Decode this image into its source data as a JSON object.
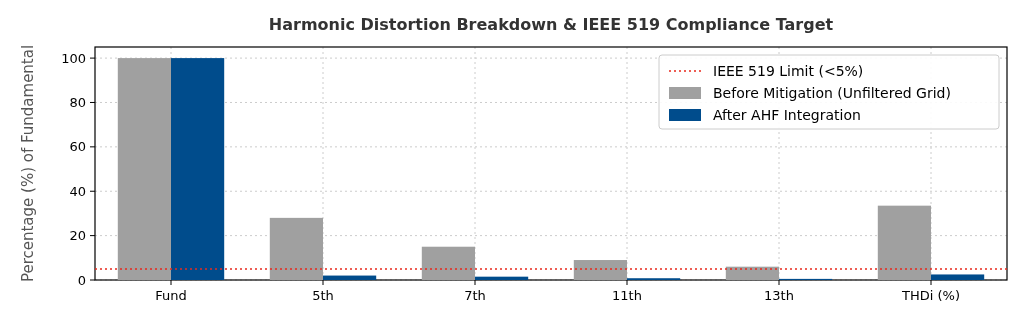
{
  "chart_data": {
    "type": "bar",
    "title": "Harmonic Distortion Breakdown & IEEE 519 Compliance Target",
    "ylabel": "Percentage (%) of Fundamental",
    "categories": [
      "Fund",
      "5th",
      "7th",
      "11th",
      "13th",
      "THDi (%)"
    ],
    "series": [
      {
        "name": "Before Mitigation (Unfiltered Grid)",
        "color": "#a0a0a0",
        "values": [
          100,
          28,
          15,
          9,
          6,
          33.5
        ]
      },
      {
        "name": "After AHF Integration",
        "color": "#004c8c",
        "values": [
          100,
          2,
          1.5,
          0.8,
          0.5,
          2.5
        ]
      }
    ],
    "ylim": [
      0,
      105
    ],
    "yticks": [
      0,
      20,
      40,
      60,
      80,
      100
    ],
    "grid": true,
    "legend": "top right",
    "ref_lines": [
      {
        "axis": "y",
        "value": 5,
        "label": "IEEE 519 Limit (<5%)",
        "color": "#e8291c",
        "line_style": "dotted"
      }
    ]
  }
}
